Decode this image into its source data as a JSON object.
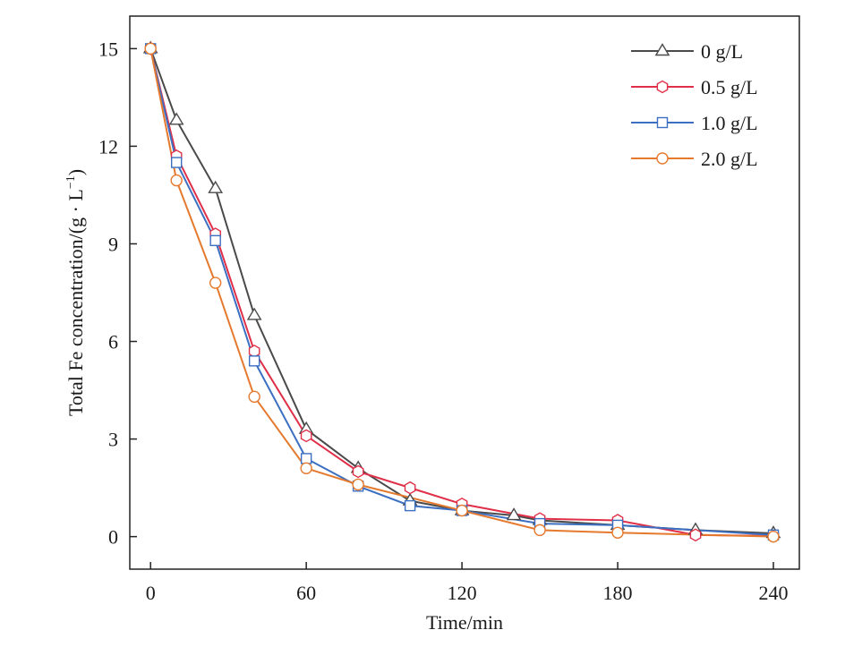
{
  "chart_data": {
    "type": "line",
    "xlabel": "Time/min",
    "ylabel": "Total Fe concentration/(g · L",
    "ylabel_sup": "−1",
    "ylabel_close": ")",
    "xlim": [
      -8,
      250
    ],
    "ylim": [
      -1,
      16
    ],
    "xticks": [
      0,
      60,
      120,
      180,
      240
    ],
    "yticks": [
      0,
      3,
      6,
      9,
      12,
      15
    ],
    "grid": false,
    "legend_position": "top-right",
    "series": [
      {
        "name": "0 g/L",
        "color": "#4a4a4a",
        "marker": "triangle",
        "x": [
          0,
          10,
          25,
          40,
          60,
          80,
          100,
          120,
          140,
          150,
          180,
          210,
          240
        ],
        "y": [
          15,
          12.8,
          10.7,
          6.8,
          3.3,
          2.1,
          1.1,
          0.8,
          0.65,
          0.5,
          0.35,
          0.2,
          0.1
        ]
      },
      {
        "name": "0.5 g/L",
        "color": "#e03049",
        "marker": "hexagon",
        "x": [
          0,
          10,
          25,
          40,
          60,
          80,
          100,
          120,
          150,
          180,
          210,
          240
        ],
        "y": [
          15,
          11.7,
          9.3,
          5.7,
          3.1,
          2.0,
          1.5,
          1.0,
          0.55,
          0.5,
          0.05,
          0.02
        ]
      },
      {
        "name": "1.0 g/L",
        "color": "#3c6fc2",
        "marker": "square",
        "x": [
          0,
          10,
          25,
          40,
          60,
          80,
          100,
          120,
          150,
          180,
          240
        ],
        "y": [
          15,
          11.5,
          9.1,
          5.4,
          2.4,
          1.55,
          0.95,
          0.8,
          0.4,
          0.35,
          0.05
        ]
      },
      {
        "name": "2.0 g/L",
        "color": "#e5792e",
        "marker": "circle",
        "x": [
          0,
          10,
          25,
          40,
          60,
          80,
          120,
          150,
          180,
          240
        ],
        "y": [
          15,
          10.95,
          7.8,
          4.3,
          2.1,
          1.6,
          0.8,
          0.2,
          0.12,
          0.0
        ]
      }
    ]
  }
}
